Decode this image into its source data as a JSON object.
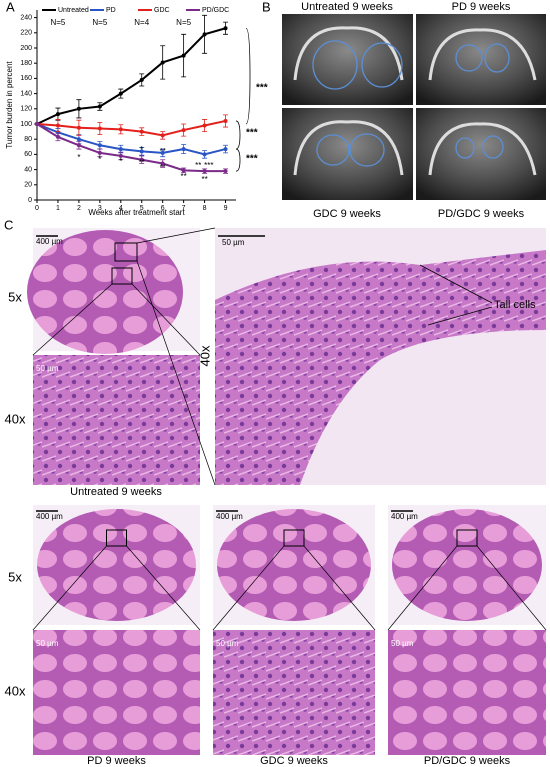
{
  "chart_data": {
    "type": "line",
    "x_label": "Weeks after treatment start",
    "y_label": "Tumor burden in percent",
    "x": [
      0,
      1,
      2,
      3,
      4,
      5,
      6,
      7,
      8,
      9
    ],
    "xlim": [
      0,
      9.5
    ],
    "xticks": [
      0,
      1,
      2,
      3,
      4,
      5,
      6,
      7,
      8,
      9
    ],
    "ylim": [
      0,
      250
    ],
    "yticks": [
      0,
      20,
      40,
      60,
      80,
      100,
      120,
      140,
      160,
      180,
      200,
      220,
      240
    ],
    "series": [
      {
        "name": "Untreated",
        "color": "#000000",
        "values": [
          100,
          113,
          120,
          123,
          140,
          158,
          181,
          190,
          218,
          226
        ],
        "errors": [
          0,
          8,
          12,
          5,
          6,
          8,
          22,
          28,
          25,
          8
        ]
      },
      {
        "name": "PD",
        "color": "#2a55c5",
        "values": [
          100,
          89,
          80,
          72,
          67,
          64,
          62,
          67,
          60,
          67
        ],
        "errors": [
          0,
          5,
          6,
          5,
          5,
          5,
          5,
          6,
          5,
          5
        ]
      },
      {
        "name": "GDC",
        "color": "#e3201b",
        "values": [
          100,
          98,
          95,
          94,
          93,
          90,
          85,
          92,
          98,
          104
        ],
        "errors": [
          0,
          8,
          10,
          8,
          6,
          5,
          5,
          8,
          8,
          8
        ]
      },
      {
        "name": "PD/GDC",
        "color": "#7b2a8a",
        "values": [
          100,
          83,
          72,
          62,
          58,
          53,
          48,
          39,
          38,
          38
        ],
        "errors": [
          0,
          5,
          5,
          5,
          5,
          5,
          5,
          3,
          3,
          3
        ]
      }
    ],
    "n_labels": [
      "N=5",
      "N=5",
      "N=4",
      "N=5"
    ],
    "sig_labels": [
      "***",
      "***",
      "***"
    ],
    "point_stars": [
      "*",
      "*",
      "*",
      "*",
      "**",
      "**",
      "**",
      "**",
      "**",
      "**",
      "***"
    ]
  },
  "panels": {
    "a": "A",
    "b": "B",
    "c": "C"
  },
  "ultrasound": [
    "Untreated 9 weeks",
    "PD 9 weeks",
    "GDC 9 weeks",
    "PD/GDC 9 weeks"
  ],
  "histology": {
    "mag_5x": "5x",
    "mag_40x": "40x",
    "mag_40x_big": "40x",
    "scale_400": "400 µm",
    "scale_50": "50 µm",
    "scale_50_big": "50 µm",
    "tall_cells": "Tall cells",
    "untreated": "Untreated 9 weeks",
    "bottom_5x": "5x",
    "bottom_40x": "40x",
    "bottom": [
      {
        "label": "PD 9 weeks",
        "scale_5x": "400 µm",
        "scale_40x": "50 µm"
      },
      {
        "label": "GDC 9 weeks",
        "scale_5x": "400 µm",
        "scale_40x": "50 µm"
      },
      {
        "label": "PD/GDC 9 weeks",
        "scale_5x": "400 µm",
        "scale_40x": "50 µm"
      }
    ]
  }
}
